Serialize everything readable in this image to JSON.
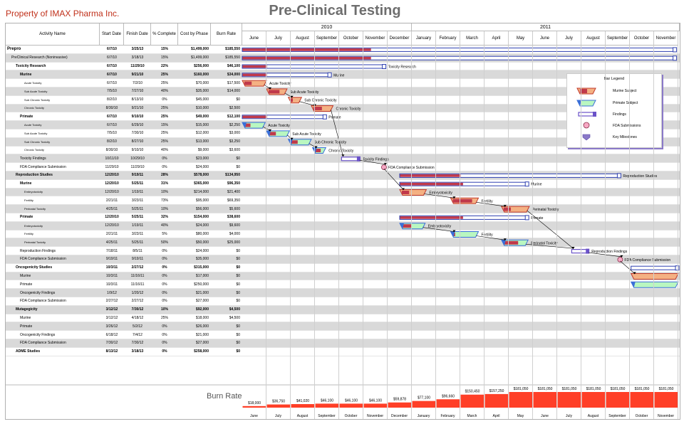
{
  "company": "Property of IMAX Pharma Inc.",
  "title": "Pre-Clinical Testing",
  "columns": {
    "name": "Activity Name",
    "start": "Start Date",
    "finish": "Finish Date",
    "pct": "% Complete",
    "cost": "Cost by Phase",
    "burn": "Burn Rate"
  },
  "years": [
    {
      "label": "2010"
    },
    {
      "label": "2011"
    }
  ],
  "months": [
    "June",
    "July",
    "August",
    "September",
    "October",
    "November",
    "December",
    "January",
    "February",
    "March",
    "April",
    "May",
    "June",
    "July",
    "August",
    "September",
    "October",
    "November"
  ],
  "rows": [
    {
      "name": "Prepro",
      "start": "6/7/10",
      "finish": "3/25/13",
      "pct": "15%",
      "cost": "$1,499,000",
      "burn": "$185,550",
      "level": 0,
      "bold": true,
      "shade": false
    },
    {
      "name": "PreClinical Research (Noninvasive)",
      "start": "6/7/10",
      "finish": "3/18/13",
      "pct": "15%",
      "cost": "$1,499,000",
      "burn": "$185,550",
      "level": 1,
      "bold": false,
      "shade": true
    },
    {
      "name": "Toxicity Research",
      "start": "6/7/10",
      "finish": "11/29/10",
      "pct": "22%",
      "cost": "$256,000",
      "burn": "$46,100",
      "level": 2,
      "bold": true,
      "shade": false
    },
    {
      "name": "Murine",
      "start": "6/7/10",
      "finish": "9/21/10",
      "pct": "25%",
      "cost": "$160,000",
      "burn": "$34,000",
      "level": 3,
      "bold": true,
      "shade": true
    },
    {
      "name": "Acute Toxicity",
      "start": "6/7/10",
      "finish": "7/2/10",
      "pct": "25%",
      "cost": "$70,000",
      "burn": "$17,500",
      "level": 4,
      "bold": false,
      "shade": false
    },
    {
      "name": "Sub Acute Toxicity",
      "start": "7/5/10",
      "finish": "7/27/10",
      "pct": "40%",
      "cost": "$35,000",
      "burn": "$14,000",
      "level": 4,
      "bold": false,
      "shade": true
    },
    {
      "name": "Sub Chronic Toxicity",
      "start": "8/2/10",
      "finish": "8/13/10",
      "pct": "0%",
      "cost": "$45,000",
      "burn": "$0",
      "level": 4,
      "bold": false,
      "shade": false
    },
    {
      "name": "Chronic Toxicity",
      "start": "8/30/10",
      "finish": "9/21/10",
      "pct": "25%",
      "cost": "$10,000",
      "burn": "$2,500",
      "level": 4,
      "bold": false,
      "shade": true
    },
    {
      "name": "Primate",
      "start": "6/7/10",
      "finish": "9/10/10",
      "pct": "25%",
      "cost": "$49,000",
      "burn": "$12,100",
      "level": 3,
      "bold": true,
      "shade": false
    },
    {
      "name": "Acute Toxicity",
      "start": "6/7/10",
      "finish": "6/29/10",
      "pct": "15%",
      "cost": "$15,000",
      "burn": "$2,250",
      "level": 4,
      "bold": false,
      "shade": true
    },
    {
      "name": "Sub Acute Toxicity",
      "start": "7/5/10",
      "finish": "7/30/10",
      "pct": "25%",
      "cost": "$12,000",
      "burn": "$3,000",
      "level": 4,
      "bold": false,
      "shade": false
    },
    {
      "name": "Sub Chronic Toxicity",
      "start": "8/2/10",
      "finish": "8/27/10",
      "pct": "25%",
      "cost": "$13,000",
      "burn": "$3,250",
      "level": 4,
      "bold": false,
      "shade": true
    },
    {
      "name": "Chronic Toxicity",
      "start": "8/30/10",
      "finish": "9/10/10",
      "pct": "40%",
      "cost": "$9,000",
      "burn": "$3,600",
      "level": 4,
      "bold": false,
      "shade": false
    },
    {
      "name": "Toxicity Findings",
      "start": "10/11/10",
      "finish": "10/29/10",
      "pct": "0%",
      "cost": "$23,000",
      "burn": "$0",
      "level": 3,
      "bold": false,
      "shade": true
    },
    {
      "name": "FDA Compliance Submission",
      "start": "11/29/10",
      "finish": "11/29/10",
      "pct": "0%",
      "cost": "$24,000",
      "burn": "$0",
      "level": 3,
      "bold": false,
      "shade": false
    },
    {
      "name": "Reproduction Studies",
      "start": "12/20/10",
      "finish": "9/19/11",
      "pct": "28%",
      "cost": "$578,000",
      "burn": "$134,950",
      "level": 2,
      "bold": true,
      "shade": true
    },
    {
      "name": "Murine",
      "start": "12/20/10",
      "finish": "5/25/11",
      "pct": "31%",
      "cost": "$365,000",
      "burn": "$96,350",
      "level": 3,
      "bold": true,
      "shade": false
    },
    {
      "name": "Embryotoxicity",
      "start": "12/20/10",
      "finish": "1/19/11",
      "pct": "10%",
      "cost": "$214,000",
      "burn": "$21,400",
      "level": 4,
      "bold": false,
      "shade": true
    },
    {
      "name": "Fertility",
      "start": "2/21/11",
      "finish": "3/23/11",
      "pct": "73%",
      "cost": "$95,000",
      "burn": "$69,350",
      "level": 4,
      "bold": false,
      "shade": false
    },
    {
      "name": "Perinatal Toxicity",
      "start": "4/25/11",
      "finish": "5/25/11",
      "pct": "10%",
      "cost": "$56,000",
      "burn": "$5,600",
      "level": 4,
      "bold": false,
      "shade": true
    },
    {
      "name": "Primate",
      "start": "12/20/10",
      "finish": "5/25/11",
      "pct": "32%",
      "cost": "$154,000",
      "burn": "$38,600",
      "level": 3,
      "bold": true,
      "shade": false
    },
    {
      "name": "Embryotoxicity",
      "start": "12/20/10",
      "finish": "1/19/11",
      "pct": "40%",
      "cost": "$24,000",
      "burn": "$9,600",
      "level": 4,
      "bold": false,
      "shade": true
    },
    {
      "name": "Fertility",
      "start": "2/21/11",
      "finish": "3/23/11",
      "pct": "5%",
      "cost": "$80,000",
      "burn": "$4,000",
      "level": 4,
      "bold": false,
      "shade": false
    },
    {
      "name": "Perinatal Toxicity",
      "start": "4/25/11",
      "finish": "5/25/11",
      "pct": "50%",
      "cost": "$50,000",
      "burn": "$25,000",
      "level": 4,
      "bold": false,
      "shade": true
    },
    {
      "name": "Reproduction Findings",
      "start": "7/18/11",
      "finish": "8/5/11",
      "pct": "0%",
      "cost": "$24,000",
      "burn": "$0",
      "level": 3,
      "bold": false,
      "shade": false
    },
    {
      "name": "FDA Compliance Submission",
      "start": "9/19/11",
      "finish": "9/19/11",
      "pct": "0%",
      "cost": "$35,000",
      "burn": "$0",
      "level": 3,
      "bold": false,
      "shade": true
    },
    {
      "name": "Oncogenicity Studies",
      "start": "10/3/11",
      "finish": "2/27/12",
      "pct": "0%",
      "cost": "$315,000",
      "burn": "$0",
      "level": 2,
      "bold": true,
      "shade": false
    },
    {
      "name": "Murine",
      "start": "10/3/11",
      "finish": "11/16/11",
      "pct": "0%",
      "cost": "$17,000",
      "burn": "$0",
      "level": 3,
      "bold": false,
      "shade": true
    },
    {
      "name": "Primate",
      "start": "10/3/11",
      "finish": "11/16/11",
      "pct": "0%",
      "cost": "$250,000",
      "burn": "$0",
      "level": 3,
      "bold": false,
      "shade": false
    },
    {
      "name": "Oncogenicity Findings",
      "start": "1/9/12",
      "finish": "1/20/12",
      "pct": "0%",
      "cost": "$21,000",
      "burn": "$0",
      "level": 3,
      "bold": false,
      "shade": true
    },
    {
      "name": "FDA Compliance Submission",
      "start": "2/27/12",
      "finish": "2/27/12",
      "pct": "0%",
      "cost": "$27,000",
      "burn": "$0",
      "level": 3,
      "bold": false,
      "shade": false
    },
    {
      "name": "Mutagegicity",
      "start": "3/12/12",
      "finish": "7/30/12",
      "pct": "10%",
      "cost": "$92,000",
      "burn": "$4,500",
      "level": 2,
      "bold": true,
      "shade": true
    },
    {
      "name": "Murine",
      "start": "3/12/12",
      "finish": "4/18/12",
      "pct": "25%",
      "cost": "$18,000",
      "burn": "$4,500",
      "level": 3,
      "bold": false,
      "shade": false
    },
    {
      "name": "Primate",
      "start": "3/26/12",
      "finish": "5/2/12",
      "pct": "0%",
      "cost": "$26,000",
      "burn": "$0",
      "level": 3,
      "bold": false,
      "shade": true
    },
    {
      "name": "Oncogenicity Findings",
      "start": "6/18/12",
      "finish": "7/4/12",
      "pct": "0%",
      "cost": "$21,000",
      "burn": "$0",
      "level": 3,
      "bold": false,
      "shade": false
    },
    {
      "name": "FDA Compliance Submission",
      "start": "7/30/12",
      "finish": "7/30/12",
      "pct": "0%",
      "cost": "$27,000",
      "burn": "$0",
      "level": 3,
      "bold": false,
      "shade": true
    },
    {
      "name": "ADME Studies",
      "start": "8/13/12",
      "finish": "3/18/13",
      "pct": "0%",
      "cost": "$258,000",
      "burn": "$0",
      "level": 2,
      "bold": true,
      "shade": false
    }
  ],
  "bars": [
    {
      "row": 0,
      "type": "summary",
      "start": 0,
      "end": 17.9,
      "fill": 5.3,
      "label": ""
    },
    {
      "row": 1,
      "type": "summary",
      "start": 0,
      "end": 17.9,
      "fill": 5.3,
      "label": ""
    },
    {
      "row": 2,
      "type": "summary",
      "start": 0,
      "end": 5.9,
      "fill": 1.0,
      "label": "Toxicity Research"
    },
    {
      "row": 3,
      "type": "summary",
      "start": 0,
      "end": 3.65,
      "fill": 1.0,
      "label": "Murine"
    },
    {
      "row": 4,
      "type": "murine",
      "start": 0,
      "end": 1.0,
      "fill": 0.3,
      "label": "Acute Toxicity"
    },
    {
      "row": 5,
      "type": "murine",
      "start": 1.0,
      "end": 1.85,
      "fill": 0.45,
      "label": "Sub Acute Toxicity"
    },
    {
      "row": 6,
      "type": "murine",
      "start": 1.9,
      "end": 2.45,
      "fill": 0.1,
      "label": "Sub Chronic Toxicity"
    },
    {
      "row": 7,
      "type": "murine",
      "start": 2.85,
      "end": 3.75,
      "fill": 0.35,
      "label": "Chronic Toxicity"
    },
    {
      "row": 8,
      "type": "summary",
      "start": 0,
      "end": 3.45,
      "fill": 1.0,
      "label": "Primate"
    },
    {
      "row": 9,
      "type": "primate",
      "start": 0,
      "end": 0.95,
      "fill": 0.25,
      "label": "Acute Toxicity"
    },
    {
      "row": 10,
      "type": "primate",
      "start": 1.0,
      "end": 1.95,
      "fill": 0.3,
      "label": "Sub Acute Toxicity"
    },
    {
      "row": 11,
      "type": "primate",
      "start": 1.9,
      "end": 2.85,
      "fill": 0.3,
      "label": "Sub Chronic Toxicity"
    },
    {
      "row": 12,
      "type": "primate",
      "start": 2.9,
      "end": 3.45,
      "fill": 0.25,
      "label": "Chronic Toxicity"
    },
    {
      "row": 13,
      "type": "findings",
      "start": 4.1,
      "end": 4.85,
      "fill": 0,
      "label": "Toxicity Findings"
    },
    {
      "row": 14,
      "type": "milestone",
      "start": 5.85,
      "end": 5.85,
      "fill": 0,
      "label": "FDA Compliance Submission"
    },
    {
      "row": 15,
      "type": "summary",
      "start": 6.5,
      "end": 15.6,
      "fill": 2.5,
      "label": "Reproduction Studies"
    },
    {
      "row": 16,
      "type": "summary",
      "start": 6.5,
      "end": 11.8,
      "fill": 2.6,
      "label": "Murine"
    },
    {
      "row": 17,
      "type": "murine",
      "start": 6.5,
      "end": 7.6,
      "fill": 0.3,
      "label": "Embryotoxicity"
    },
    {
      "row": 18,
      "type": "murine",
      "start": 8.6,
      "end": 9.75,
      "fill": 0.8,
      "label": "Fertility"
    },
    {
      "row": 19,
      "type": "murine",
      "start": 10.7,
      "end": 11.85,
      "fill": 0.3,
      "label": "Perinatal Toxicity"
    },
    {
      "row": 20,
      "type": "summary",
      "start": 6.5,
      "end": 11.8,
      "fill": 2.6,
      "label": "Primate"
    },
    {
      "row": 21,
      "type": "primate",
      "start": 6.5,
      "end": 7.55,
      "fill": 0.4,
      "label": "Embryotoxicity"
    },
    {
      "row": 22,
      "type": "primate",
      "start": 8.6,
      "end": 9.75,
      "fill": 0.1,
      "label": "Fertility"
    },
    {
      "row": 23,
      "type": "primate",
      "start": 10.7,
      "end": 11.8,
      "fill": 0.6,
      "label": "Perinatal Toxicity"
    },
    {
      "row": 24,
      "type": "findings",
      "start": 13.6,
      "end": 14.3,
      "fill": 0,
      "label": "Reproduction Findings"
    },
    {
      "row": 25,
      "type": "milestone",
      "start": 15.6,
      "end": 15.6,
      "fill": 0,
      "label": "FDA Compliance Submission"
    },
    {
      "row": 26,
      "type": "summary",
      "start": 16.05,
      "end": 18.0,
      "fill": 0,
      "label": ""
    },
    {
      "row": 27,
      "type": "murine",
      "start": 16.05,
      "end": 18.0,
      "fill": 0,
      "label": "Mu"
    },
    {
      "row": 28,
      "type": "primate",
      "start": 16.05,
      "end": 18.0,
      "fill": 0,
      "label": "Pr"
    }
  ],
  "links": [
    [
      4,
      5
    ],
    [
      5,
      6
    ],
    [
      6,
      7
    ],
    [
      9,
      10
    ],
    [
      10,
      11
    ],
    [
      11,
      12
    ],
    [
      7,
      13
    ],
    [
      13,
      14
    ],
    [
      14,
      17
    ],
    [
      17,
      18
    ],
    [
      18,
      19
    ],
    [
      21,
      22
    ],
    [
      22,
      23
    ],
    [
      19,
      24
    ],
    [
      23,
      24
    ],
    [
      24,
      25
    ],
    [
      25,
      27
    ]
  ],
  "legend": {
    "title": "Bar Legend",
    "items": [
      "Murine Subject",
      "Primate Subject",
      "Findings",
      "FDA Submissions",
      "Key Milestones"
    ]
  },
  "burn": {
    "label": "Burn Rate",
    "values": [
      "$18,000",
      "$36,750",
      "$41,020",
      "$46,100",
      "$46,100",
      "$46,100",
      "$59,878",
      "$77,100",
      "$96,660",
      "$150,450",
      "$157,250",
      "$181,050",
      "$181,050",
      "$181,050",
      "$181,050",
      "$181,050",
      "$181,050",
      "$181,050"
    ],
    "nums": [
      18000,
      36750,
      41020,
      46100,
      46100,
      46100,
      59878,
      77100,
      96660,
      150450,
      157250,
      181050,
      181050,
      181050,
      181050,
      181050,
      181050,
      181050
    ]
  },
  "colors": {
    "murine_fill": "#f4b183",
    "murine_edge": "#c0392b",
    "primate_fill": "#b9f7c0",
    "primate_edge": "#3a6fd8",
    "findings": "#6a52c8",
    "summary": "#2d3fb0",
    "progress": "#c0394b",
    "milestone": "#f7a8c4",
    "burn": "#ff2a10",
    "company": "#c0301a"
  }
}
